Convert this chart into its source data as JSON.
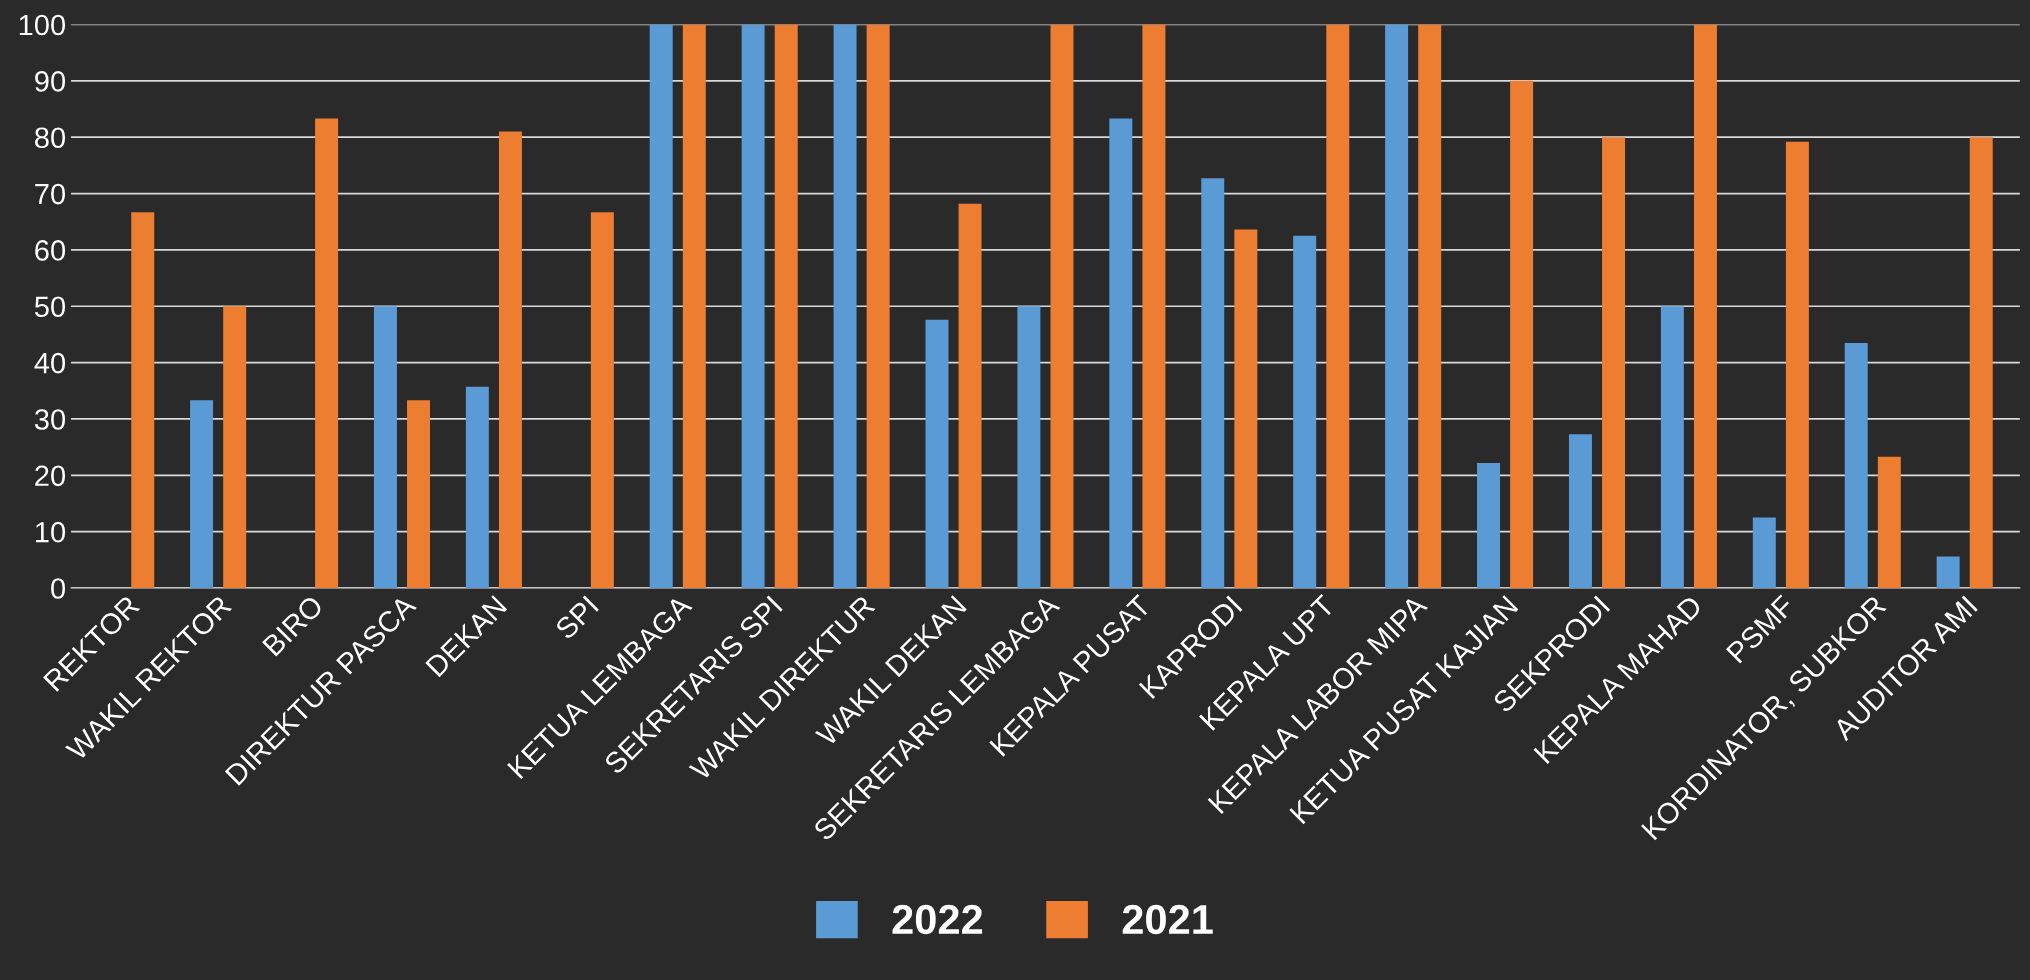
{
  "chart_data": {
    "type": "bar",
    "categories": [
      "REKTOR",
      "WAKIL REKTOR",
      "BIRO",
      "DIREKTUR PASCA",
      "DEKAN",
      "SPI",
      "KETUA LEMBAGA",
      "SEKRETARIS SPI",
      "WAKIL DIREKTUR",
      "WAKIL DEKAN",
      "SEKRETARIS LEMBAGA",
      "KEPALA PUSAT",
      "KAPRODI",
      "KEPALA UPT",
      "KEPALA LABOR MIPA",
      "KETUA PUSAT KAJIAN",
      "SEKPRODI",
      "KEPALA MAHAD",
      "PSMF",
      "KORDINATOR, SUBKOR",
      "AUDITOR AMI"
    ],
    "series": [
      {
        "name": "2022",
        "color": "#5b9bd5",
        "values": [
          0,
          33.3,
          0,
          50,
          35.7,
          0,
          100,
          100,
          100,
          47.6,
          50,
          83.3,
          72.7,
          62.5,
          100,
          22.2,
          27.3,
          50,
          12.5,
          43.5,
          5.6
        ]
      },
      {
        "name": "2021",
        "color": "#ed7d31",
        "values": [
          66.7,
          50,
          83.3,
          33.3,
          81,
          66.7,
          100,
          100,
          100,
          68.2,
          100,
          100,
          63.6,
          100,
          100,
          90,
          80,
          100,
          79.2,
          23.3,
          80
        ]
      }
    ],
    "ylim": [
      0,
      100
    ],
    "yticks": [
      0,
      10,
      20,
      30,
      40,
      50,
      60,
      70,
      80,
      90,
      100
    ],
    "grid": "y",
    "legend": "bottom"
  }
}
